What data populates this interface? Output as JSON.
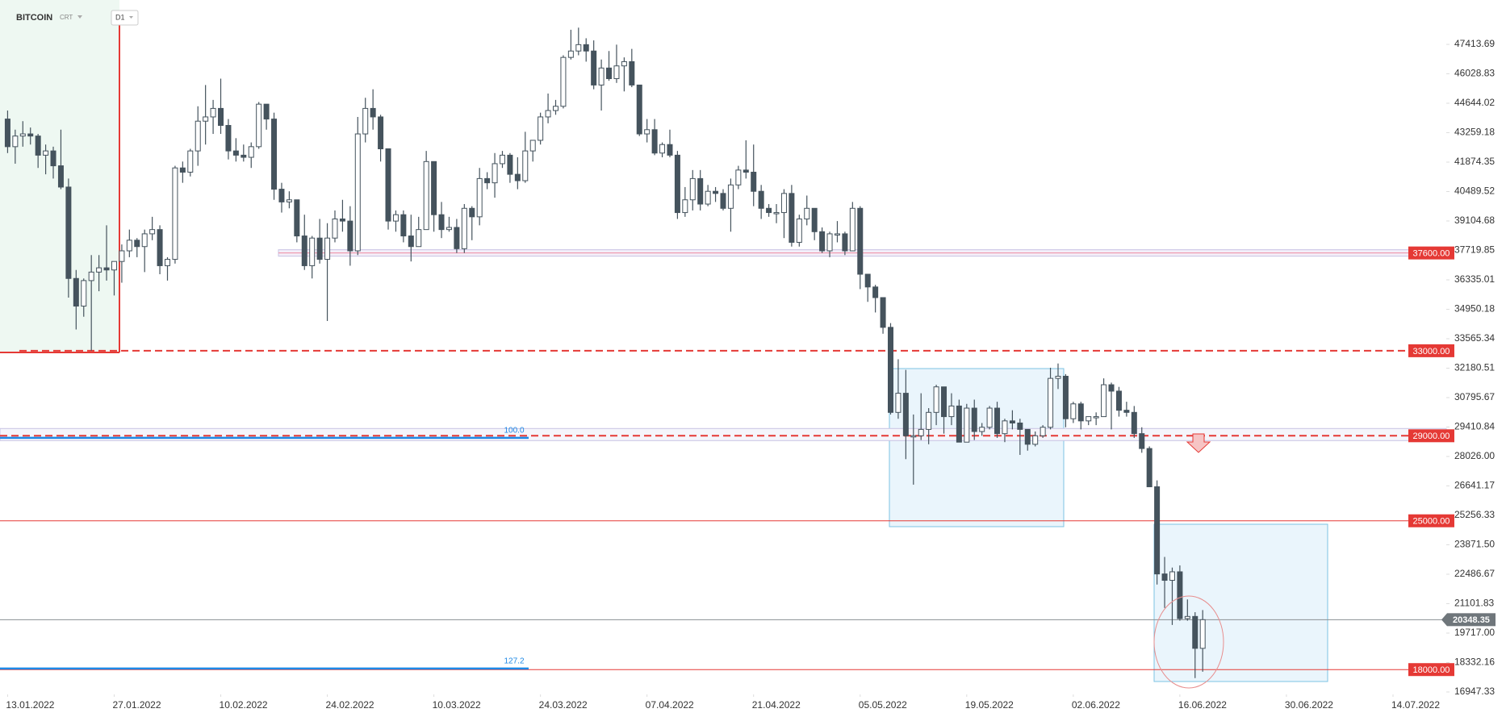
{
  "header": {
    "symbol": "BITCOIN",
    "source": "CRT",
    "timeframe": "D1"
  },
  "chart_data": {
    "type": "candlestick",
    "up_color": "#ffffff",
    "down_color": "#45535d",
    "wick_color": "#45535d",
    "xlim": [
      "12.01.2022",
      "21.07.2022"
    ],
    "xticks": [
      "13.01.2022",
      "27.01.2022",
      "10.02.2022",
      "24.02.2022",
      "10.03.2022",
      "24.03.2022",
      "07.04.2022",
      "21.04.2022",
      "05.05.2022",
      "19.05.2022",
      "02.06.2022",
      "16.06.2022",
      "30.06.2022",
      "14.07.2022"
    ],
    "ylim": [
      16870,
      49500
    ],
    "yticks": [
      47413.69,
      46028.83,
      44644.02,
      43259.18,
      41874.35,
      40489.52,
      39104.68,
      37719.85,
      36335.01,
      34950.18,
      33565.34,
      32180.51,
      30795.67,
      29410.84,
      {
        "value": 28026,
        "label": "28026.00"
      },
      26641.17,
      25256.33,
      {
        "value": 23871.5,
        "label": "23871.50"
      },
      22486.67,
      21101.83,
      {
        "value": 19717,
        "label": "19717.00"
      },
      18332.16,
      16947.33
    ],
    "x": [
      "13.01.2022",
      "14.01.2022",
      "15.01.2022",
      "16.01.2022",
      "17.01.2022",
      "18.01.2022",
      "19.01.2022",
      "20.01.2022",
      "21.01.2022",
      "22.01.2022",
      "23.01.2022",
      "24.01.2022",
      "25.01.2022",
      "26.01.2022",
      "27.01.2022",
      "28.01.2022",
      "29.01.2022",
      "30.01.2022",
      "31.01.2022",
      "01.02.2022",
      "02.02.2022",
      "03.02.2022",
      "04.02.2022",
      "05.02.2022",
      "06.02.2022",
      "07.02.2022",
      "08.02.2022",
      "09.02.2022",
      "10.02.2022",
      "11.02.2022",
      "12.02.2022",
      "13.02.2022",
      "14.02.2022",
      "15.02.2022",
      "16.02.2022",
      "17.02.2022",
      "18.02.2022",
      "19.02.2022",
      "20.02.2022",
      "21.02.2022",
      "22.02.2022",
      "23.02.2022",
      "24.02.2022",
      "25.02.2022",
      "26.02.2022",
      "27.02.2022",
      "28.02.2022",
      "01.03.2022",
      "02.03.2022",
      "03.03.2022",
      "04.03.2022",
      "05.03.2022",
      "06.03.2022",
      "07.03.2022",
      "08.03.2022",
      "09.03.2022",
      "10.03.2022",
      "11.03.2022",
      "12.03.2022",
      "13.03.2022",
      "14.03.2022",
      "15.03.2022",
      "16.03.2022",
      "17.03.2022",
      "18.03.2022",
      "19.03.2022",
      "20.03.2022",
      "21.03.2022",
      "22.03.2022",
      "23.03.2022",
      "24.03.2022",
      "25.03.2022",
      "26.03.2022",
      "27.03.2022",
      "28.03.2022",
      "29.03.2022",
      "30.03.2022",
      "31.03.2022",
      "01.04.2022",
      "02.04.2022",
      "03.04.2022",
      "04.04.2022",
      "05.04.2022",
      "06.04.2022",
      "07.04.2022",
      "08.04.2022",
      "09.04.2022",
      "10.04.2022",
      "11.04.2022",
      "12.04.2022",
      "13.04.2022",
      "14.04.2022",
      "15.04.2022",
      "16.04.2022",
      "17.04.2022",
      "18.04.2022",
      "19.04.2022",
      "20.04.2022",
      "21.04.2022",
      "22.04.2022",
      "23.04.2022",
      "24.04.2022",
      "25.04.2022",
      "26.04.2022",
      "27.04.2022",
      "28.04.2022",
      "29.04.2022",
      "30.04.2022",
      "01.05.2022",
      "02.05.2022",
      "03.05.2022",
      "04.05.2022",
      "05.05.2022",
      "06.05.2022",
      "07.05.2022",
      "08.05.2022",
      "09.05.2022",
      "10.05.2022",
      "11.05.2022",
      "12.05.2022",
      "13.05.2022",
      "14.05.2022",
      "15.05.2022",
      "16.05.2022",
      "17.05.2022",
      "18.05.2022",
      "19.05.2022",
      "20.05.2022",
      "21.05.2022",
      "22.05.2022",
      "23.05.2022",
      "24.05.2022",
      "25.05.2022",
      "26.05.2022",
      "27.05.2022",
      "28.05.2022",
      "29.05.2022",
      "30.05.2022",
      "31.05.2022",
      "01.06.2022",
      "02.06.2022",
      "03.06.2022",
      "04.06.2022",
      "05.06.2022",
      "06.06.2022",
      "07.06.2022",
      "08.06.2022",
      "09.06.2022",
      "10.06.2022",
      "11.06.2022",
      "12.06.2022",
      "13.06.2022",
      "14.06.2022",
      "15.06.2022",
      "16.06.2022",
      "17.06.2022",
      "18.06.2022",
      "19.06.2022"
    ],
    "open": [
      43900,
      42600,
      43100,
      43200,
      43100,
      42200,
      42400,
      41700,
      40700,
      36400,
      35100,
      36300,
      36700,
      36900,
      36800,
      37200,
      37700,
      38200,
      37900,
      38500,
      38700,
      37000,
      37300,
      41600,
      41400,
      42400,
      43800,
      44000,
      44400,
      43600,
      42400,
      42200,
      42100,
      42600,
      44600,
      43900,
      40600,
      40000,
      40100,
      38400,
      37000,
      38300,
      37300,
      38300,
      39200,
      39100,
      37700,
      43200,
      44400,
      44000,
      42500,
      39100,
      39400,
      38400,
      37900,
      38700,
      41900,
      39400,
      38700,
      38800,
      37800,
      39700,
      39300,
      41100,
      40900,
      41800,
      42200,
      41300,
      41000,
      42400,
      42900,
      44000,
      44300,
      44500,
      46800,
      47100,
      47400,
      47100,
      45500,
      46300,
      45800,
      46400,
      46600,
      45500,
      43200,
      43400,
      42300,
      42700,
      42200,
      39500,
      40100,
      41100,
      39900,
      40500,
      40400,
      39700,
      40800,
      41500,
      41400,
      40500,
      39700,
      39500,
      39500,
      40400,
      38100,
      39200,
      39700,
      38600,
      37700,
      38500,
      38500,
      37700,
      39700,
      36600,
      36000,
      35500,
      34100,
      30100,
      31000,
      29000,
      29000,
      29300,
      30100,
      31300,
      29900,
      30400,
      28700,
      30300,
      29200,
      29400,
      30300,
      29100,
      29700,
      29600,
      29300,
      28600,
      29000,
      29400,
      31700,
      31800,
      29800,
      30500,
      29700,
      29900,
      29900,
      31400,
      31100,
      30200,
      30100,
      29100,
      28400,
      26600,
      22500,
      22200,
      22600,
      20400,
      20500,
      19000
    ],
    "high": [
      44300,
      43400,
      43800,
      43500,
      43200,
      42700,
      42600,
      43400,
      41100,
      36800,
      36400,
      37500,
      37500,
      38900,
      37200,
      38000,
      38700,
      38300,
      38700,
      39300,
      38900,
      37400,
      41700,
      41900,
      42500,
      44500,
      45500,
      44800,
      45800,
      43900,
      43000,
      42700,
      42800,
      44700,
      44600,
      44200,
      40900,
      40500,
      40100,
      39400,
      38400,
      39200,
      39000,
      39600,
      40100,
      39800,
      44000,
      44900,
      45300,
      44100,
      42500,
      39600,
      39600,
      39400,
      39300,
      42400,
      41900,
      40000,
      39300,
      39200,
      39900,
      39800,
      41600,
      41400,
      42300,
      42400,
      42300,
      42100,
      43300,
      42900,
      44200,
      45100,
      44800,
      46900,
      48100,
      48200,
      47700,
      47600,
      46700,
      47100,
      47400,
      46800,
      47200,
      45500,
      43900,
      43900,
      42800,
      43400,
      42400,
      40700,
      41500,
      41500,
      40800,
      40700,
      40600,
      41100,
      41700,
      42900,
      42700,
      40800,
      39900,
      39900,
      40600,
      40800,
      39400,
      40300,
      39700,
      38800,
      38600,
      39100,
      38600,
      40000,
      39800,
      36600,
      36100,
      35500,
      34300,
      32600,
      32100,
      30000,
      31000,
      30300,
      31400,
      31300,
      31000,
      30700,
      30500,
      30700,
      29600,
      30400,
      30600,
      29800,
      30200,
      29800,
      29300,
      29200,
      29500,
      32200,
      32400,
      31900,
      30600,
      30600,
      29900,
      30100,
      31700,
      31500,
      31300,
      30600,
      30400,
      29400,
      28500,
      26900,
      23300,
      22800,
      22900,
      21300,
      20700,
      20800
    ],
    "low": [
      42300,
      41800,
      42600,
      42700,
      41600,
      41300,
      41100,
      40600,
      35500,
      34000,
      34600,
      33000,
      35800,
      36300,
      35600,
      36200,
      37400,
      37400,
      36700,
      38200,
      36600,
      36300,
      37100,
      40900,
      41200,
      41700,
      42700,
      43200,
      43200,
      42000,
      41900,
      41900,
      41600,
      42500,
      43400,
      40100,
      39500,
      39700,
      38100,
      36800,
      36400,
      37100,
      34400,
      38100,
      38600,
      37000,
      37500,
      42800,
      43400,
      41900,
      38700,
      38600,
      38100,
      37200,
      37900,
      38700,
      38600,
      38300,
      38600,
      37600,
      37600,
      38200,
      38900,
      40600,
      40200,
      41600,
      40900,
      40600,
      40900,
      41900,
      42700,
      43700,
      44100,
      44400,
      46700,
      46900,
      46600,
      45300,
      44300,
      45700,
      45600,
      45200,
      45400,
      43100,
      42800,
      42200,
      42100,
      42100,
      39200,
      39300,
      39600,
      39600,
      39800,
      40000,
      39600,
      38600,
      40600,
      41100,
      39800,
      39200,
      39300,
      39000,
      38300,
      37900,
      37900,
      38900,
      38200,
      37600,
      37400,
      38100,
      37500,
      37700,
      35900,
      35300,
      34800,
      33800,
      30000,
      29800,
      27900,
      26700,
      28800,
      28600,
      29500,
      29100,
      29500,
      28700,
      28700,
      28800,
      29000,
      29300,
      28900,
      28700,
      29300,
      28100,
      28300,
      28500,
      28900,
      29300,
      31200,
      29400,
      29600,
      29300,
      29500,
      29500,
      29900,
      29300,
      29900,
      29900,
      28900,
      28200,
      26600,
      22000,
      20900,
      20100,
      20300,
      20300,
      17600,
      17900
    ],
    "close": [
      42600,
      43100,
      43200,
      43100,
      42200,
      42400,
      41700,
      40700,
      36400,
      35100,
      36300,
      36700,
      36900,
      36800,
      37200,
      37700,
      38200,
      37900,
      38500,
      38700,
      37000,
      37300,
      41600,
      41400,
      42400,
      43800,
      44000,
      44400,
      43600,
      42400,
      42200,
      42100,
      42600,
      44600,
      43900,
      40600,
      40000,
      40100,
      38400,
      37000,
      38300,
      37300,
      38300,
      39200,
      39100,
      37700,
      43200,
      44400,
      44000,
      42500,
      39100,
      39400,
      38400,
      37900,
      38700,
      41900,
      39400,
      38700,
      38800,
      37800,
      39700,
      39300,
      41100,
      40900,
      41800,
      42200,
      41300,
      41000,
      42400,
      42900,
      44000,
      44300,
      44500,
      46800,
      47100,
      47400,
      47100,
      45500,
      46300,
      45800,
      46400,
      46600,
      45500,
      43200,
      43400,
      42300,
      42700,
      42200,
      39500,
      40100,
      41100,
      39900,
      40500,
      40400,
      39700,
      40800,
      41500,
      41400,
      40500,
      39700,
      39500,
      39500,
      40400,
      38100,
      39200,
      39700,
      38600,
      37700,
      38500,
      38500,
      37700,
      39700,
      36600,
      36000,
      35500,
      34100,
      30100,
      31000,
      29000,
      29000,
      29300,
      30100,
      31300,
      29900,
      30400,
      28700,
      30300,
      29200,
      29400,
      30300,
      29100,
      29700,
      29600,
      29300,
      28600,
      29000,
      29400,
      31700,
      31800,
      29800,
      30500,
      29700,
      29900,
      29900,
      31400,
      31100,
      30200,
      30100,
      29100,
      28400,
      26600,
      22500,
      22200,
      22600,
      20400,
      20500,
      19000,
      20348.35
    ],
    "levels": [
      {
        "value": 37600,
        "label": "37600.00",
        "style": "band"
      },
      {
        "value": 33000,
        "label": "33000.00",
        "style": "dashed"
      },
      {
        "value": 29000,
        "label": "29000.00",
        "style": "dashed-band"
      },
      {
        "value": 25000,
        "label": "25000.00",
        "style": "solid"
      },
      {
        "value": 18000,
        "label": "18000.00",
        "style": "solid"
      }
    ],
    "level_color": "#e53935",
    "fib_levels": [
      {
        "label": "100.0",
        "price": 28900
      },
      {
        "label": "127.2",
        "price": 18050
      }
    ],
    "fib_color": "#1e88e5",
    "last_price": 20348.35,
    "last_price_color": "#6f767b"
  }
}
